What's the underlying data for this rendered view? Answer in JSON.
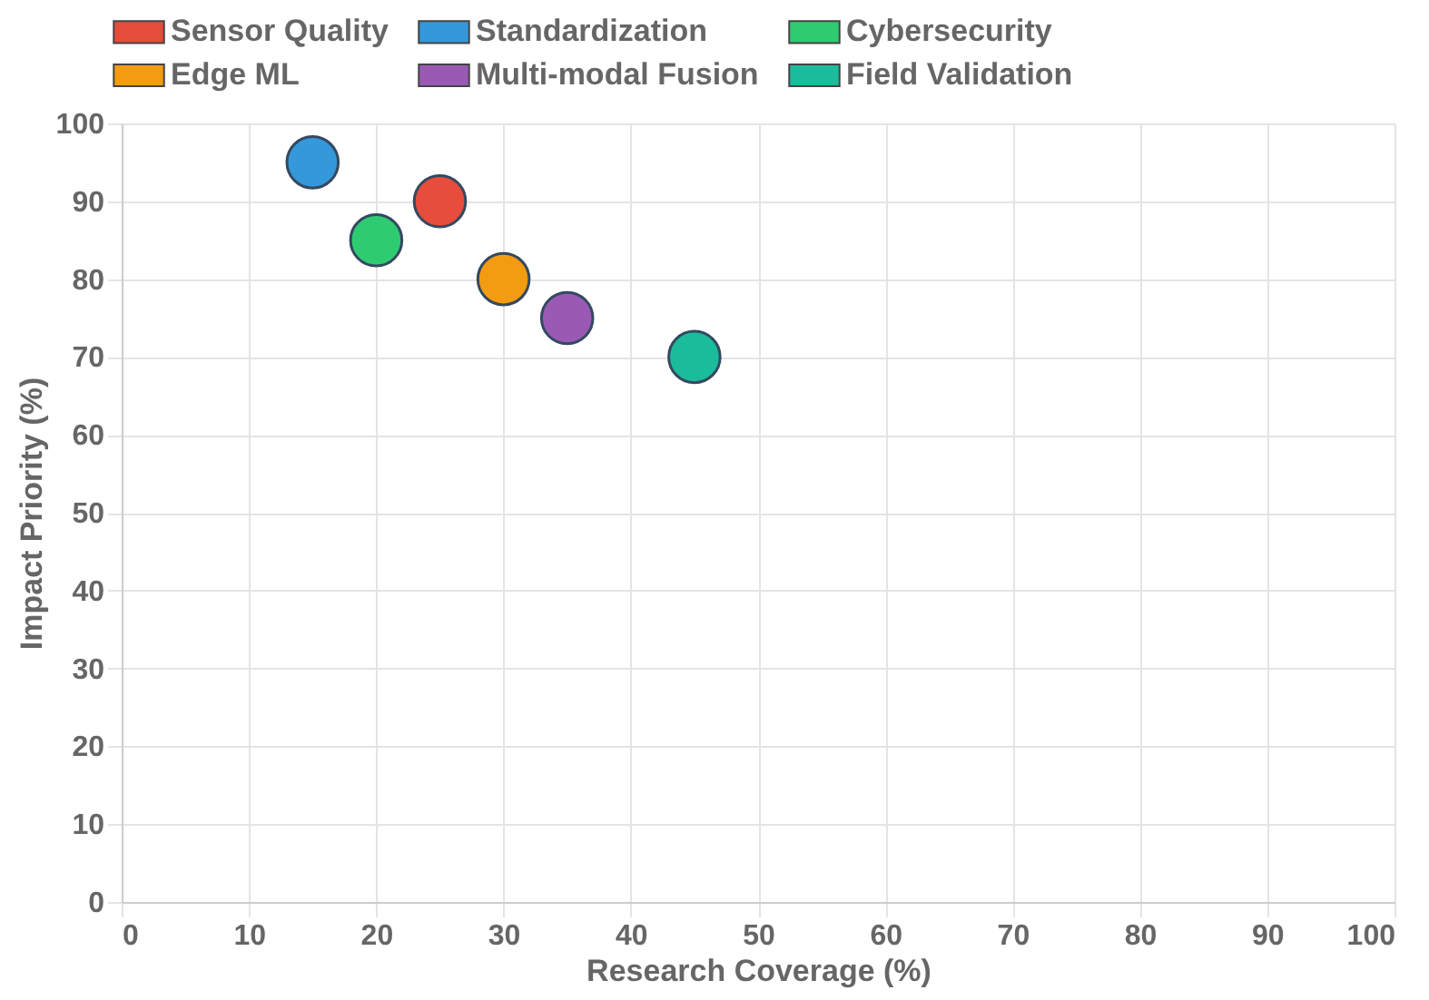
{
  "chart_data": {
    "type": "scatter",
    "xlabel": "Research Coverage (%)",
    "ylabel": "Impact Priority (%)",
    "xlim": [
      0,
      100
    ],
    "xticks": [
      0,
      10,
      20,
      30,
      40,
      50,
      60,
      70,
      80,
      90,
      100
    ],
    "ylim": [
      0,
      100
    ],
    "yticks": [
      0,
      10,
      20,
      30,
      40,
      50,
      60,
      70,
      80,
      90,
      100
    ],
    "grid": true,
    "legend": "top",
    "marker": "circle",
    "series": [
      {
        "name": "Sensor Quality",
        "color": "#e74c3c",
        "x": [
          25
        ],
        "values": [
          90
        ]
      },
      {
        "name": "Standardization",
        "color": "#3498db",
        "x": [
          15
        ],
        "values": [
          95
        ]
      },
      {
        "name": "Cybersecurity",
        "color": "#2ecc71",
        "x": [
          20
        ],
        "values": [
          85
        ]
      },
      {
        "name": "Edge ML",
        "color": "#f39c12",
        "x": [
          30
        ],
        "values": [
          80
        ]
      },
      {
        "name": "Multi-modal Fusion",
        "color": "#9b59b6",
        "x": [
          35
        ],
        "values": [
          75
        ]
      },
      {
        "name": "Field Validation",
        "color": "#1abc9c",
        "x": [
          45
        ],
        "values": [
          70
        ]
      }
    ]
  }
}
